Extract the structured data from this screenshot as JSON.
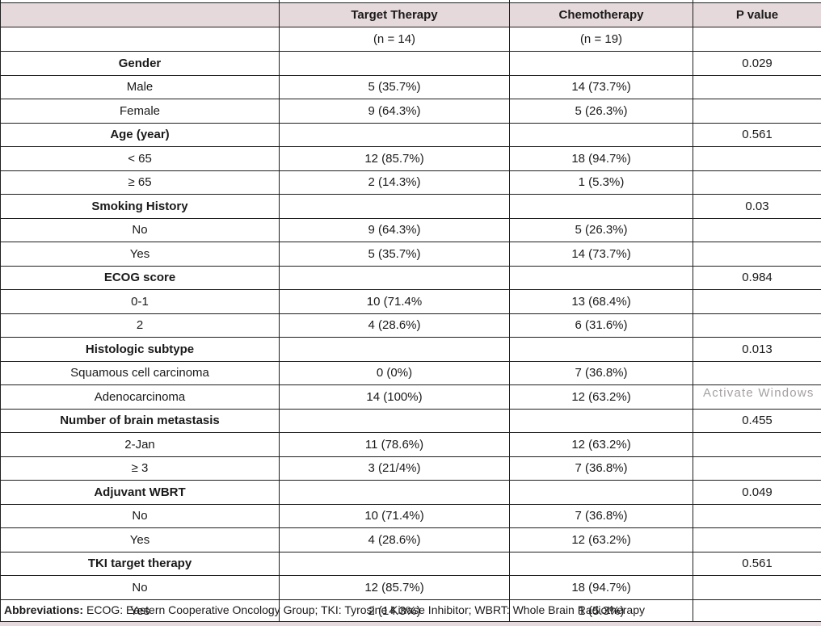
{
  "header": {
    "col_group": "",
    "target": "Target Therapy",
    "chemo": "Chemotherapy",
    "p": "P value",
    "target_n": "(n = 14)",
    "chemo_n": "(n = 19)",
    "p_n": ""
  },
  "rows": [
    {
      "label": "Gender",
      "bold": true,
      "target": "",
      "chemo": "",
      "p": "0.029"
    },
    {
      "label": "Male",
      "bold": false,
      "target": "5 (35.7%)",
      "chemo": "14 (73.7%)",
      "p": ""
    },
    {
      "label": "Female",
      "bold": false,
      "target": "9 (64.3%)",
      "chemo": "5 (26.3%)",
      "p": ""
    },
    {
      "label": "Age (year)",
      "bold": true,
      "target": "",
      "chemo": "",
      "p": "0.561"
    },
    {
      "label": "< 65",
      "bold": false,
      "target": "12 (85.7%)",
      "chemo": "18 (94.7%)",
      "p": ""
    },
    {
      "label": "≥ 65",
      "bold": false,
      "target": "2 (14.3%)",
      "chemo": "1 (5.3%)",
      "p": ""
    },
    {
      "label": "Smoking History",
      "bold": true,
      "target": "",
      "chemo": "",
      "p": "0.03"
    },
    {
      "label": "No",
      "bold": false,
      "target": "9 (64.3%)",
      "chemo": "5 (26.3%)",
      "p": ""
    },
    {
      "label": "Yes",
      "bold": false,
      "target": "5 (35.7%)",
      "chemo": "14 (73.7%)",
      "p": ""
    },
    {
      "label": "ECOG score",
      "bold": true,
      "target": "",
      "chemo": "",
      "p": "0.984"
    },
    {
      "label": "0-1",
      "bold": false,
      "target": "10 (71.4%",
      "chemo": "13 (68.4%)",
      "p": ""
    },
    {
      "label": "2",
      "bold": false,
      "target": "4 (28.6%)",
      "chemo": "6 (31.6%)",
      "p": ""
    },
    {
      "label": "Histologic subtype",
      "bold": true,
      "target": "",
      "chemo": "",
      "p": "0.013"
    },
    {
      "label": "Squamous cell carcinoma",
      "bold": false,
      "target": "0 (0%)",
      "chemo": "7 (36.8%)",
      "p": ""
    },
    {
      "label": "Adenocarcinoma",
      "bold": false,
      "target": "14 (100%)",
      "chemo": "12 (63.2%)",
      "p": ""
    },
    {
      "label": "Number of brain metastasis",
      "bold": true,
      "target": "",
      "chemo": "",
      "p": "0.455"
    },
    {
      "label": "2-Jan",
      "bold": false,
      "target": "11 (78.6%)",
      "chemo": "12 (63.2%)",
      "p": ""
    },
    {
      "label": "≥ 3",
      "bold": false,
      "target": "3 (21/4%)",
      "chemo": "7 (36.8%)",
      "p": ""
    },
    {
      "label": "Adjuvant WBRT",
      "bold": true,
      "target": "",
      "chemo": "",
      "p": "0.049"
    },
    {
      "label": "No",
      "bold": false,
      "target": "10 (71.4%)",
      "chemo": "7 (36.8%)",
      "p": ""
    },
    {
      "label": "Yes",
      "bold": false,
      "target": "4 (28.6%)",
      "chemo": "12 (63.2%)",
      "p": ""
    },
    {
      "label": "TKI target therapy",
      "bold": true,
      "target": "",
      "chemo": "",
      "p": "0.561"
    },
    {
      "label": "No",
      "bold": false,
      "target": "12 (85.7%)",
      "chemo": "18 (94.7%)",
      "p": ""
    },
    {
      "label": "Yes",
      "bold": false,
      "target": "2 (14.3%)",
      "chemo": "1 (5.3%)",
      "p": ""
    }
  ],
  "footer": {
    "abbrev_label": "Abbreviations:",
    "abbrev_text": "ECOG: Eastern Cooperative Oncology Group; TKI: Tyrosine Kinase Inhibitor; WBRT: Whole Brain Radiotherapy"
  },
  "watermark": "Activate Windows",
  "colors": {
    "header_bg": "#e6d9db",
    "border": "#1f1f1f",
    "watermark": "#a5a0a0"
  }
}
